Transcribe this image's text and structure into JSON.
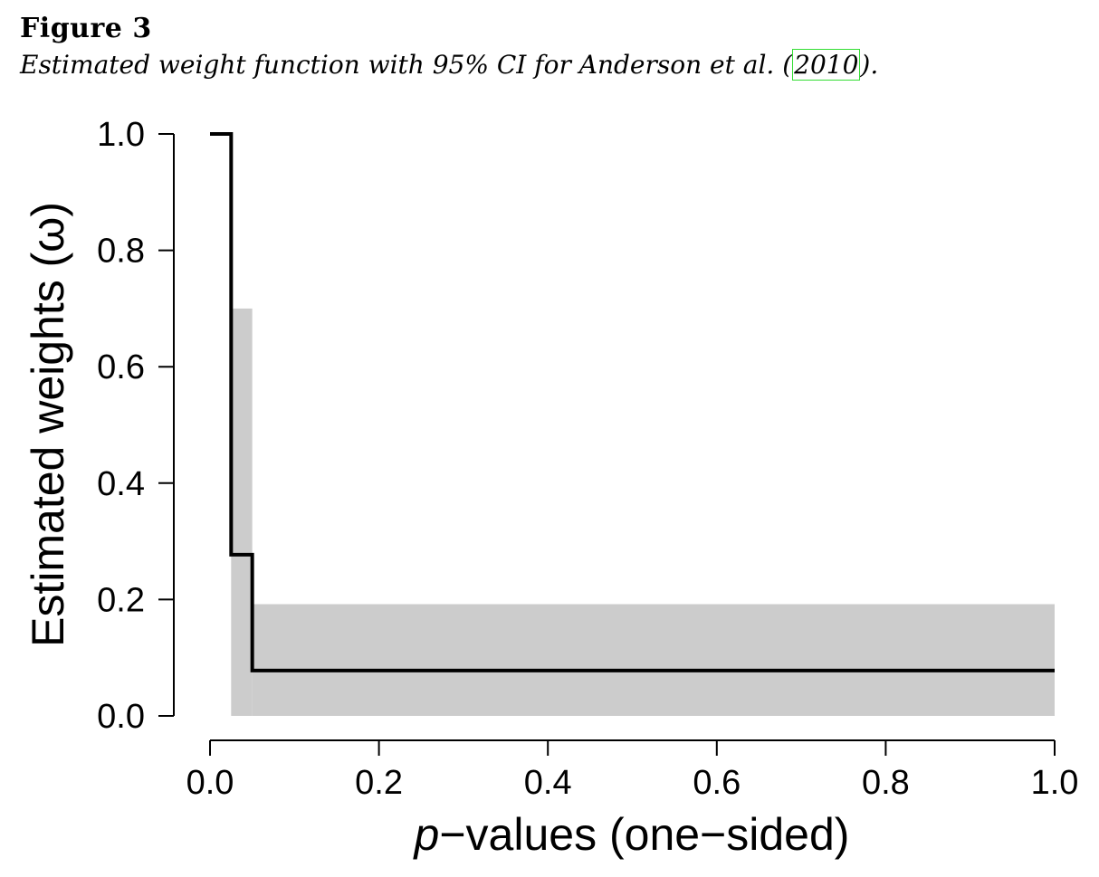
{
  "figure": {
    "label": "Figure 3",
    "caption_pre": "Estimated weight function with 95% CI for Anderson et al. (",
    "caption_year": "2010",
    "caption_post": ")."
  },
  "chart_data": {
    "type": "step",
    "xlabel_italic": "p",
    "xlabel_rest": "−values (one−sided)",
    "ylabel": "Estimated weights (ω)",
    "xlim": [
      0,
      1
    ],
    "ylim": [
      0,
      1
    ],
    "xticks": [
      0.0,
      0.2,
      0.4,
      0.6,
      0.8,
      1.0
    ],
    "yticks": [
      0.0,
      0.2,
      0.4,
      0.6,
      0.8,
      1.0
    ],
    "xtick_labels": [
      "0.0",
      "0.2",
      "0.4",
      "0.6",
      "0.8",
      "1.0"
    ],
    "ytick_labels": [
      "0.0",
      "0.2",
      "0.4",
      "0.6",
      "0.8",
      "1.0"
    ],
    "grid": false,
    "series": [
      {
        "points": [
          {
            "x": 0.0,
            "y": 1.0
          },
          {
            "x": 0.025,
            "y": 1.0
          },
          {
            "x": 0.025,
            "y": 0.277
          },
          {
            "x": 0.05,
            "y": 0.277
          },
          {
            "x": 0.05,
            "y": 0.078
          },
          {
            "x": 1.0,
            "y": 0.078
          }
        ],
        "color": "#000000"
      }
    ],
    "ci_bands": [
      {
        "x0": 0.025,
        "x1": 0.05,
        "lower": 0.0,
        "upper": 0.7
      },
      {
        "x0": 0.05,
        "x1": 1.0,
        "lower": 0.0,
        "upper": 0.192
      }
    ],
    "ci_color": "#cccccc"
  }
}
